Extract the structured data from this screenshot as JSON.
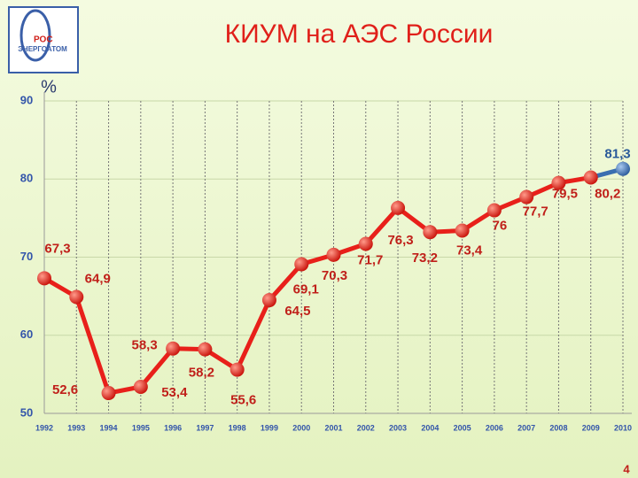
{
  "logo": {
    "line1": "РОС",
    "line2": "ЭНЕРГОАТОМ"
  },
  "page_number": "4",
  "chart_data": {
    "type": "line",
    "title": "КИУМ на АЭС России",
    "y_label": "%",
    "categories": [
      "1992",
      "1993",
      "1994",
      "1995",
      "1996",
      "1997",
      "1998",
      "1999",
      "2000",
      "2001",
      "2002",
      "2003",
      "2004",
      "2005",
      "2006",
      "2007",
      "2008",
      "2009",
      "2010"
    ],
    "series": [
      {
        "name": "КИУМ",
        "color": "#e8201a",
        "last_color": "#3a6fb0",
        "values": [
          67.3,
          64.9,
          52.6,
          53.4,
          58.3,
          58.2,
          55.6,
          64.5,
          69.1,
          70.3,
          71.7,
          76.3,
          73.2,
          73.4,
          76,
          77.7,
          79.5,
          80.2,
          81.3
        ],
        "value_labels": [
          "67,3",
          "64,9",
          "52,6",
          "53,4",
          "58,3",
          "58,2",
          "55,6",
          "64,5",
          "69,1",
          "70,3",
          "71,7",
          "76,3",
          "73,2",
          "73,4",
          "76",
          "77,7",
          "79,5",
          "80,2",
          "81,3"
        ]
      }
    ],
    "ylim": [
      50,
      90
    ],
    "yticks": [
      50,
      60,
      70,
      80,
      90
    ],
    "grid": true
  }
}
